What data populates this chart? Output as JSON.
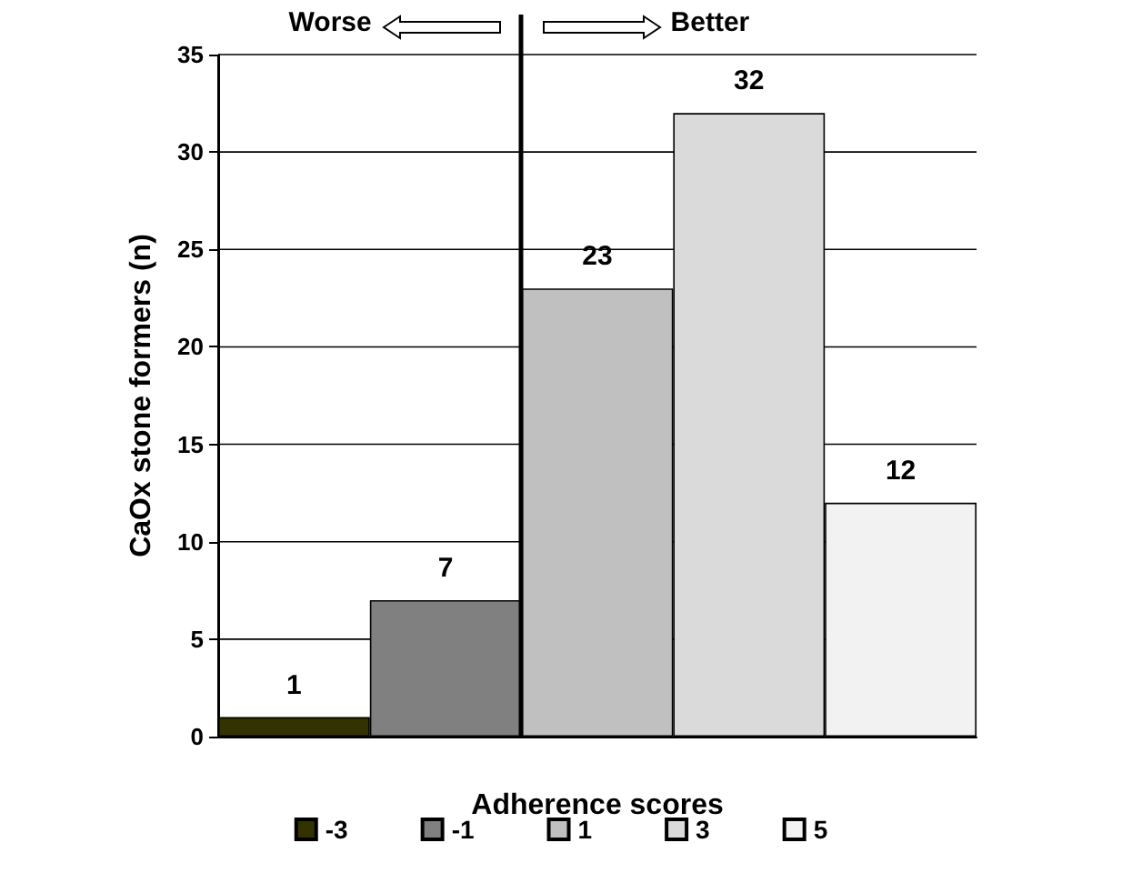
{
  "chart_data": {
    "type": "bar",
    "xlabel": "Adherence scores",
    "ylabel": "CaOx stone formers (n)",
    "categories": [
      null,
      null,
      null,
      null,
      null
    ],
    "series": [
      {
        "name": "-3",
        "color": "#333300",
        "values": [
          1,
          null,
          null,
          null,
          null
        ]
      },
      {
        "name": "-1",
        "color": "#808080",
        "values": [
          null,
          7,
          null,
          null,
          null
        ]
      },
      {
        "name": "1",
        "color": "#c0c0c0",
        "values": [
          null,
          null,
          23,
          null,
          null
        ]
      },
      {
        "name": "3",
        "color": "#dadada",
        "values": [
          null,
          null,
          null,
          32,
          null
        ]
      },
      {
        "name": "5",
        "color": "#f2f2f2",
        "values": [
          null,
          null,
          null,
          null,
          12
        ]
      }
    ],
    "ylim": [
      0,
      35
    ],
    "yticks": [
      0,
      5,
      10,
      15,
      20,
      25,
      30,
      35
    ],
    "grid": "y",
    "legend": "bottom",
    "data_labels": true,
    "annotations": [
      "Worse",
      "Better"
    ]
  }
}
